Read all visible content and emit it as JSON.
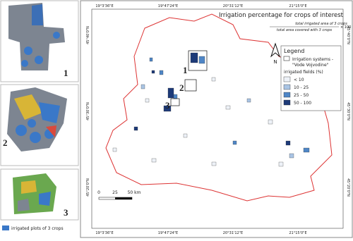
{
  "title": "Irrigation percentage for crops of interest",
  "formula": {
    "numerator": "total irrigated area of 3 crops",
    "denominator": "total area covered with 3 crops",
    "multiplier": "× 100"
  },
  "graticule": {
    "top": [
      "19°3'36\"E",
      "19°47'24\"E",
      "20°31'12\"E",
      "21°15'0\"E"
    ],
    "bottom": [
      "19°3'36\"E",
      "19°47'24\"E",
      "20°31'12\"E",
      "21°15'0\"E"
    ],
    "left": [
      "45°40'0\"N",
      "45°30'0\"N",
      "45°20'0\"N"
    ],
    "right": [
      "45°40'0\"N",
      "45°30'0\"N",
      "45°20'0\"N"
    ]
  },
  "legend": {
    "title": "Legend",
    "systems": [
      "Irrigation systems -",
      "\"Vode Vojvodine\""
    ],
    "fields_title": "irrigated fields (%)",
    "classes": [
      {
        "label": "< 10",
        "color": "#eef2f8"
      },
      {
        "label": "10 - 25",
        "color": "#a9c4e4"
      },
      {
        "label": "25 - 50",
        "color": "#4f86c6"
      },
      {
        "label": "50 - 100",
        "color": "#1d3a78"
      }
    ]
  },
  "scale_bar": [
    "0",
    "25",
    "50 km"
  ],
  "north": "N",
  "site_labels": [
    "1",
    "2",
    "3"
  ],
  "insets": {
    "labels": [
      "1",
      "2",
      "3"
    ],
    "legend": "irrigated plots of 3 crops"
  }
}
